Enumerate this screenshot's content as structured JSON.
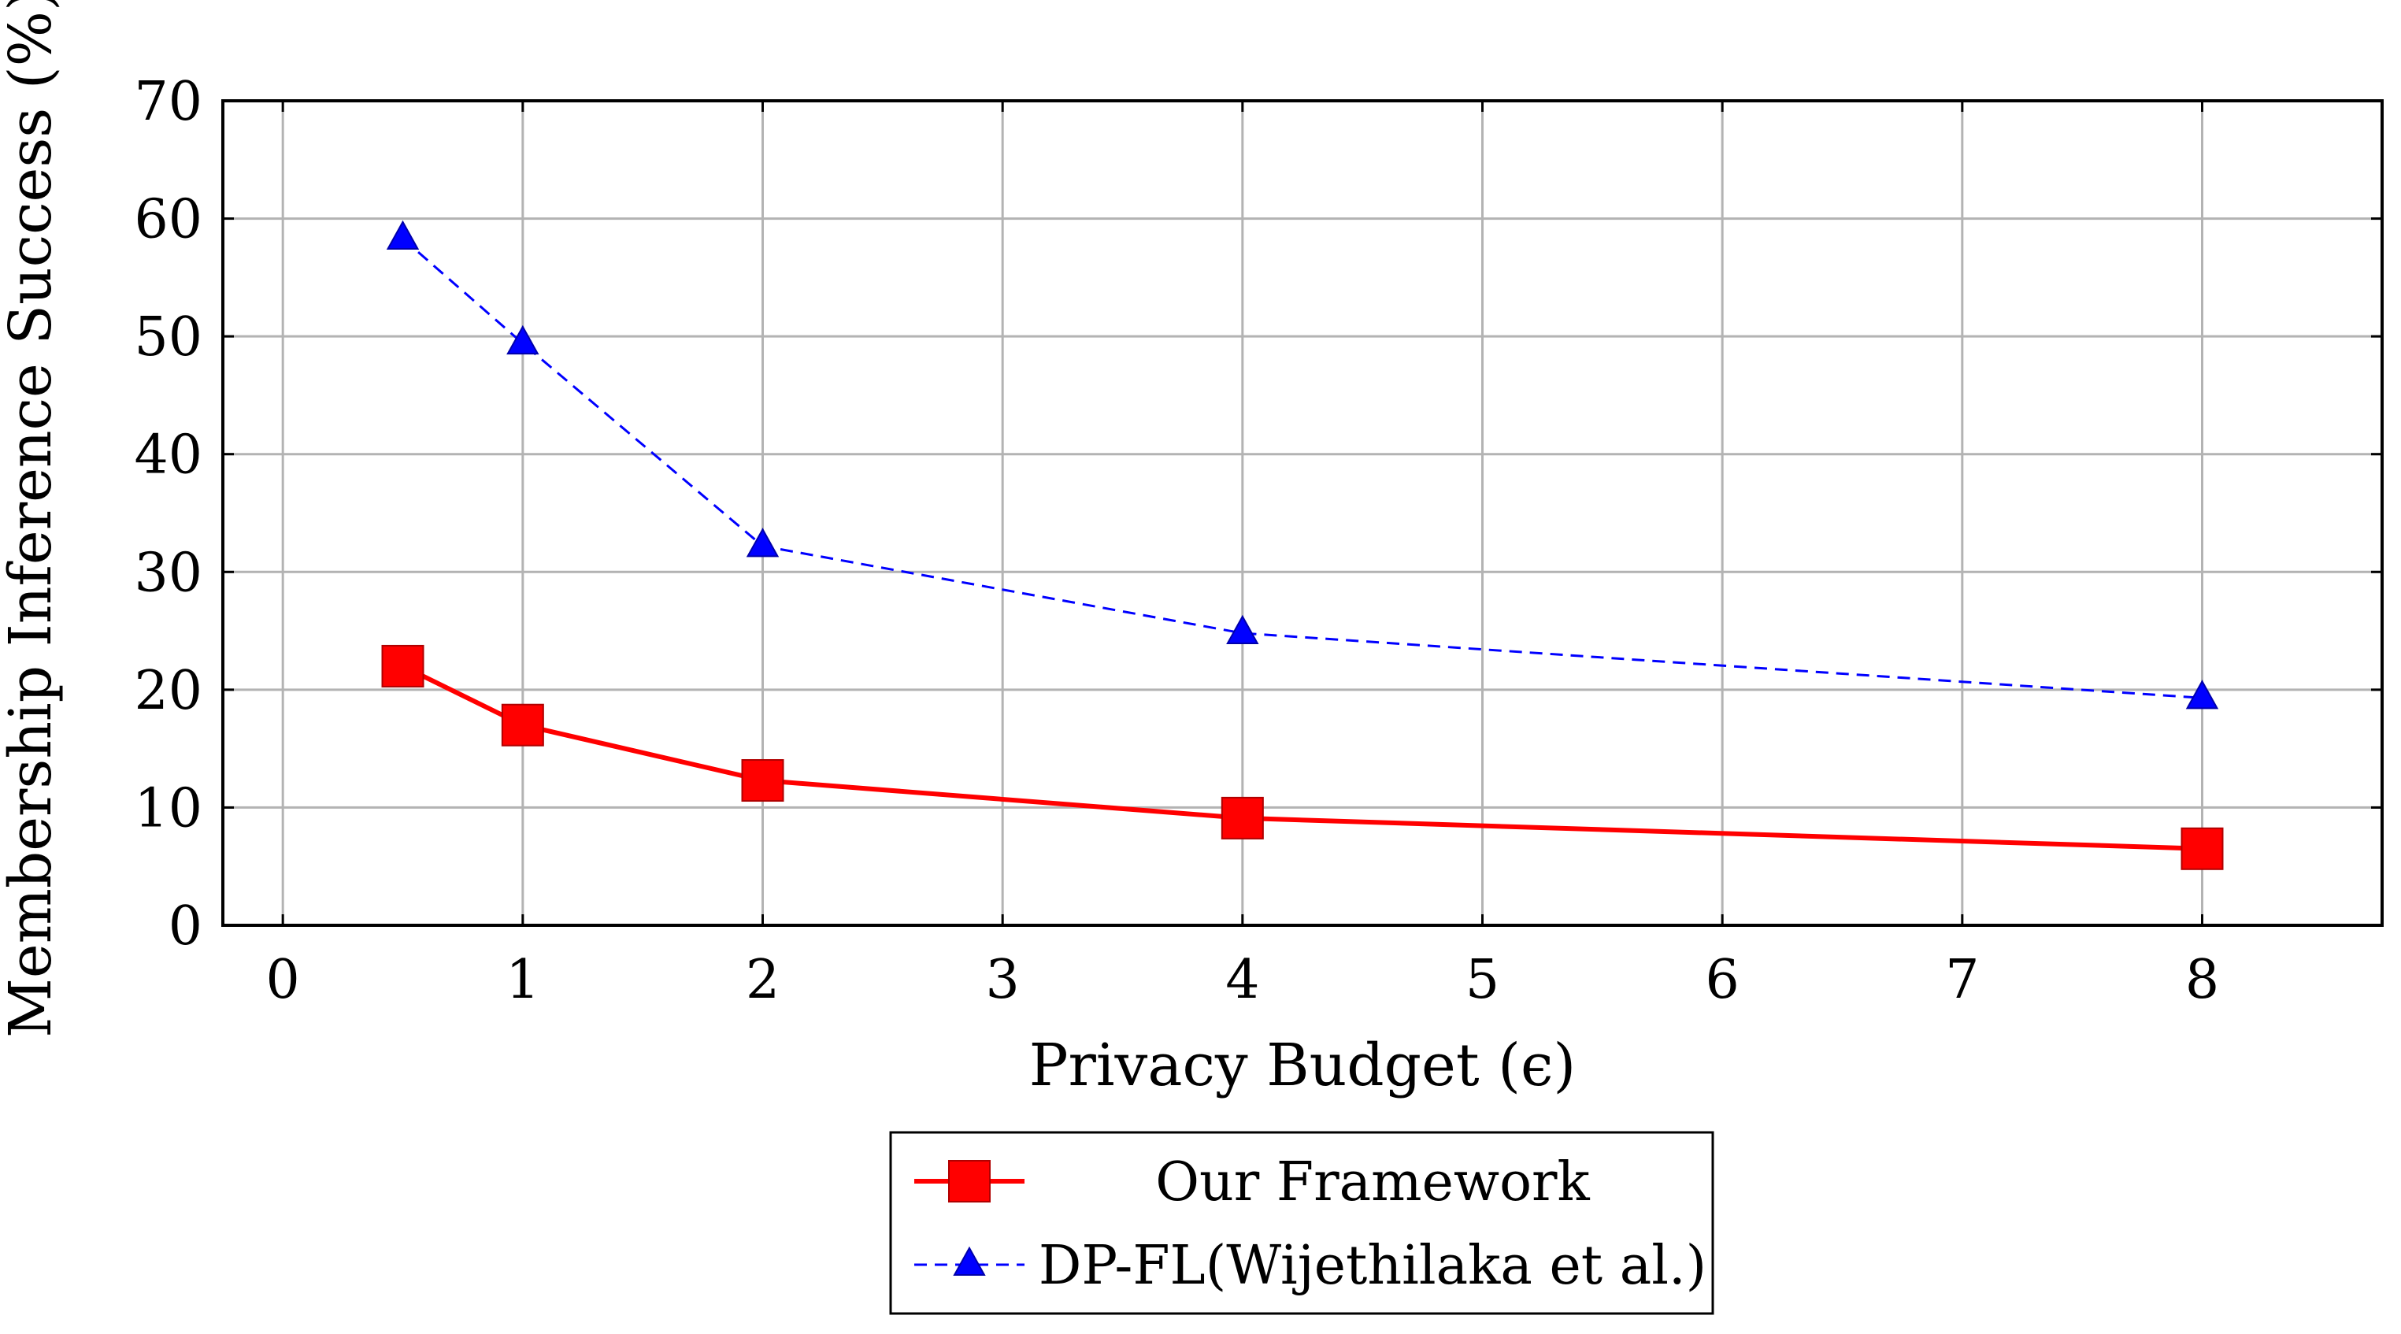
{
  "chart_data": {
    "type": "line",
    "title": "",
    "xlabel": "Privacy Budget (ϵ)",
    "ylabel": "Membership Inference Success (%)",
    "xlim": [
      -0.25,
      8.75
    ],
    "ylim": [
      0,
      70
    ],
    "xticks": [
      0,
      1,
      2,
      3,
      4,
      5,
      6,
      7,
      8
    ],
    "yticks": [
      0,
      10,
      20,
      30,
      40,
      50,
      60,
      70
    ],
    "grid": true,
    "legend_position": "bottom-center-outside",
    "series": [
      {
        "name": "Our Framework",
        "color": "#ff0000",
        "line_style": "solid",
        "marker": "square",
        "x": [
          0.5,
          1,
          2,
          4,
          8
        ],
        "y": [
          22,
          17,
          12.3,
          9.1,
          6.5
        ]
      },
      {
        "name": "DP-FL(Wijethilaka et al.)",
        "color": "#0000ff",
        "line_style": "dashed",
        "marker": "triangle",
        "x": [
          0.5,
          1,
          2,
          4,
          8
        ],
        "y": [
          58.3,
          49.4,
          32.2,
          24.8,
          19.3
        ]
      }
    ]
  }
}
